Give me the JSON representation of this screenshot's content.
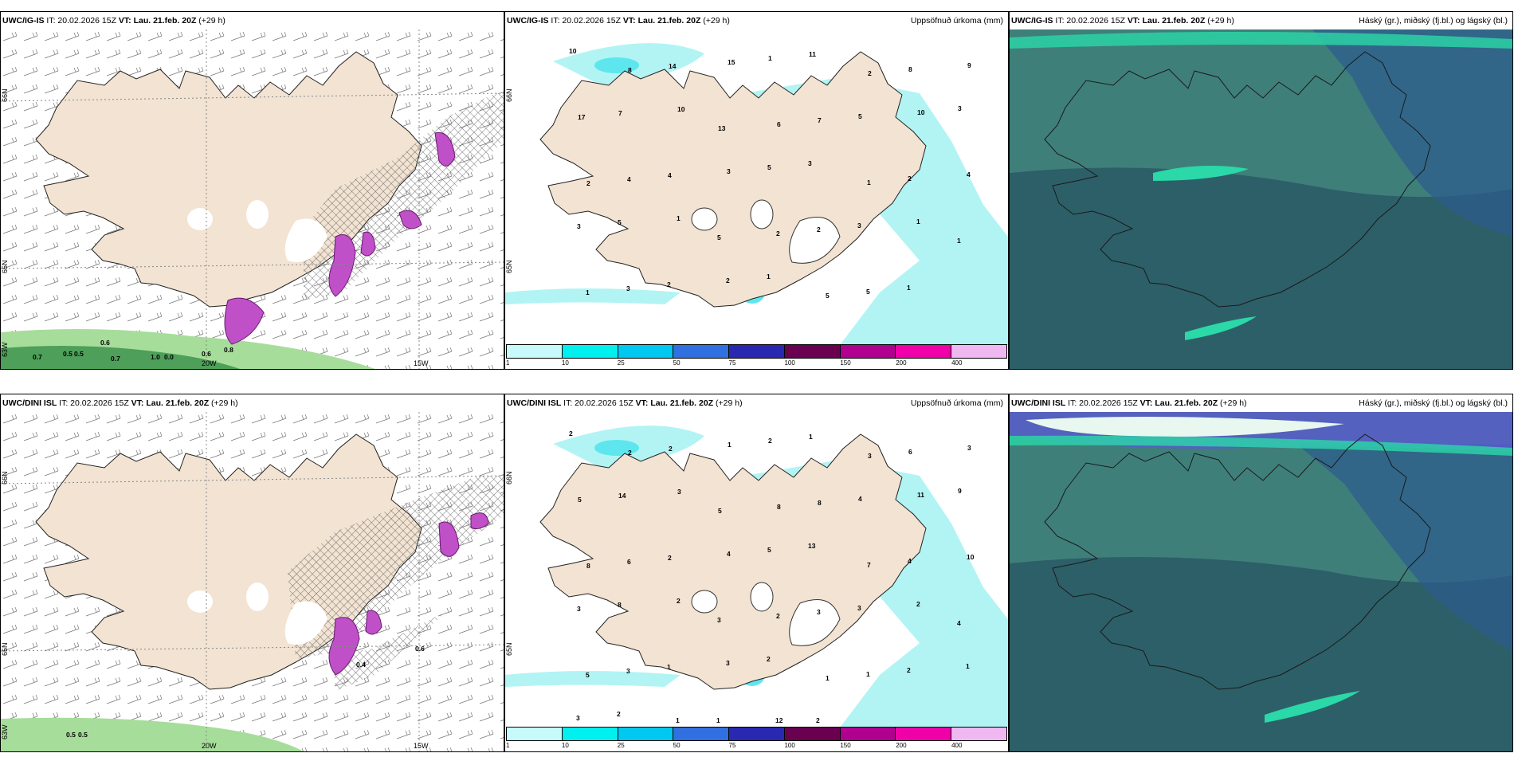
{
  "colors": {
    "land": "#f2e3d2",
    "precip_light": "#b2f4f4",
    "precip_cyan": "#5ee6ee",
    "snow_hatch": "#555555",
    "purple": "#c050c8",
    "green_light": "#a6dd9a",
    "green_dark": "#2f8a43",
    "cloud_base": "#3f7f7a",
    "cloud_dark": "#2d5f68",
    "cloud_blue": "#2d5b8f",
    "cloud_high": "#e8f7ef"
  },
  "scale": {
    "ticks": [
      "1",
      "10",
      "25",
      "50",
      "75",
      "100",
      "150",
      "200",
      "400"
    ],
    "colors": [
      "#c7fafa",
      "#00f0f0",
      "#00c8f0",
      "#3070e0",
      "#2828b0",
      "#6a0050",
      "#b00090",
      "#f000a8",
      "#f0b8f0"
    ]
  },
  "rows": [
    {
      "panels": [
        {
          "model": "UWC/IG-IS",
          "it": "IT: 20.02.2026 15Z",
          "vt": "VT: Lau. 21.feb. 20Z",
          "lead": "(+29 h)",
          "title": "",
          "lat_labels": [
            "66N",
            "65N",
            "63W"
          ],
          "lon_labels": [
            "20W",
            "15W"
          ],
          "values": [
            "0.7",
            "0.5",
            "0.5",
            "0.7",
            "1.0",
            "0.0",
            "0.6",
            "0.6",
            "0.8"
          ]
        },
        {
          "model": "UWC/IG-IS",
          "it": "IT: 20.02.2026 15Z",
          "vt": "VT: Lau. 21.feb. 20Z",
          "lead": "(+29 h)",
          "title": "Uppsöfnuð úrkoma (mm)",
          "lat_labels": [
            "66N",
            "65N"
          ],
          "values": [
            "10",
            "8",
            "14",
            "15",
            "1",
            "11",
            "2",
            "8",
            "9",
            "17",
            "7",
            "10",
            "13",
            "6",
            "7",
            "5",
            "10",
            "3",
            "2",
            "4",
            "4",
            "3",
            "5",
            "3",
            "1",
            "2",
            "4",
            "3",
            "5",
            "1",
            "5",
            "2",
            "2",
            "3",
            "1",
            "1",
            "1",
            "3",
            "2",
            "2",
            "1",
            "5",
            "5",
            "1"
          ]
        },
        {
          "model": "UWC/IG-IS",
          "it": "IT: 20.02.2026 15Z",
          "vt": "VT: Lau. 21.feb. 20Z",
          "lead": "(+29 h)",
          "title": "Háský (gr.), miðský (fj.bl.) og lágský (bl.)"
        }
      ]
    },
    {
      "panels": [
        {
          "model": "UWC/DINI ISL",
          "it": "IT: 20.02.2026 15Z",
          "vt": "VT: Lau. 21.feb. 20Z",
          "lead": "(+29 h)",
          "title": "",
          "lat_labels": [
            "66N",
            "65N",
            "63W"
          ],
          "lon_labels": [
            "20W",
            "15W"
          ],
          "values": [
            "0.5",
            "0.5",
            "0.4",
            "0.6"
          ]
        },
        {
          "model": "UWC/DINI ISL",
          "it": "IT: 20.02.2026 15Z",
          "vt": "VT: Lau. 21.feb. 20Z",
          "lead": "(+29 h)",
          "title": "Uppsöfnuð úrkoma (mm)",
          "lat_labels": [
            "66N",
            "65N"
          ],
          "values": [
            "2",
            "2",
            "2",
            "1",
            "2",
            "1",
            "3",
            "6",
            "3",
            "5",
            "14",
            "3",
            "5",
            "8",
            "8",
            "4",
            "11",
            "9",
            "8",
            "6",
            "2",
            "4",
            "5",
            "13",
            "7",
            "4",
            "10",
            "3",
            "8",
            "2",
            "3",
            "2",
            "3",
            "3",
            "2",
            "4",
            "5",
            "3",
            "1",
            "3",
            "2",
            "1",
            "1",
            "2",
            "1",
            "3",
            "2",
            "1",
            "1",
            "12",
            "2"
          ]
        },
        {
          "model": "UWC/DINI ISL",
          "it": "IT: 20.02.2026 15Z",
          "vt": "VT: Lau. 21.feb. 20Z",
          "lead": "(+29 h)",
          "title": "Háský (gr.), miðský (fj.bl.) og lágský (bl.)"
        }
      ]
    }
  ]
}
